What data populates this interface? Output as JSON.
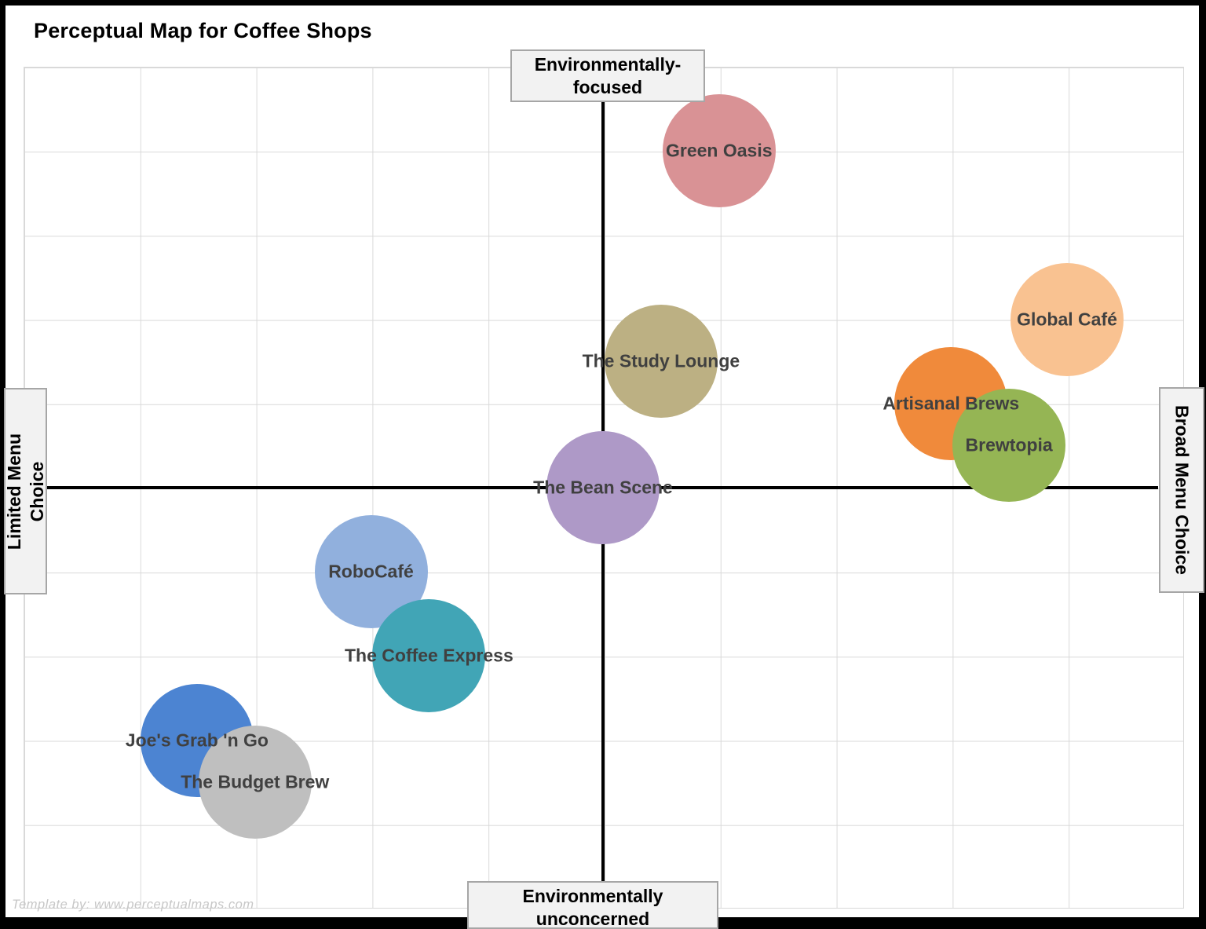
{
  "title": "Perceptual Map for Coffee Shops",
  "watermark": "Template by: www.perceptualmaps.com",
  "quadrants": {
    "top": {
      "line1": "Environmentally-",
      "line2": "focused"
    },
    "bottom": {
      "line1": "Environmentally",
      "line2": "unconcerned"
    },
    "left": {
      "line1": "Limited Menu",
      "line2": "Choice"
    },
    "right": {
      "line1": "Broad Menu Choice"
    }
  },
  "colors": {
    "grid": "#d9d9d9",
    "axis_line": "#000000",
    "label_text": "#404040",
    "axis_box_bg": "#f2f2f2",
    "axis_box_border": "#a6a6a6"
  },
  "chart_data": {
    "type": "scatter",
    "subtype": "bubble-perceptual-map",
    "title": "Perceptual Map for Coffee Shops",
    "x_axis": {
      "left_label": "Limited Menu Choice",
      "right_label": "Broad Menu Choice",
      "range": [
        -5,
        5
      ],
      "grid": true
    },
    "y_axis": {
      "bottom_label": "Environmentally unconcerned",
      "top_label": "Environmentally-focused",
      "range": [
        -5,
        5
      ],
      "grid": true
    },
    "points": [
      {
        "name": "Green Oasis",
        "x": 1,
        "y": 4,
        "color": "#d99295"
      },
      {
        "name": "Global Café",
        "x": 4,
        "y": 2,
        "color": "#f9c291"
      },
      {
        "name": "The Study Lounge",
        "x": 0.5,
        "y": 1.5,
        "color": "#bcb083"
      },
      {
        "name": "Artisanal Brews",
        "x": 3,
        "y": 1,
        "color": "#f08a3b"
      },
      {
        "name": "Brewtopia",
        "x": 3.5,
        "y": 0.5,
        "color": "#95b554"
      },
      {
        "name": "The Bean Scene",
        "x": 0,
        "y": 0,
        "color": "#ae99c7"
      },
      {
        "name": "RoboCafé",
        "x": -2,
        "y": -1,
        "color": "#91b0dd"
      },
      {
        "name": "The Coffee Express",
        "x": -1.5,
        "y": -2,
        "color": "#41a5b6"
      },
      {
        "name": "Joe's Grab 'n Go",
        "x": -3.5,
        "y": -3,
        "color": "#4c84d2"
      },
      {
        "name": "The Budget Brew",
        "x": -3,
        "y": -3.5,
        "color": "#bfbfbf"
      }
    ]
  }
}
